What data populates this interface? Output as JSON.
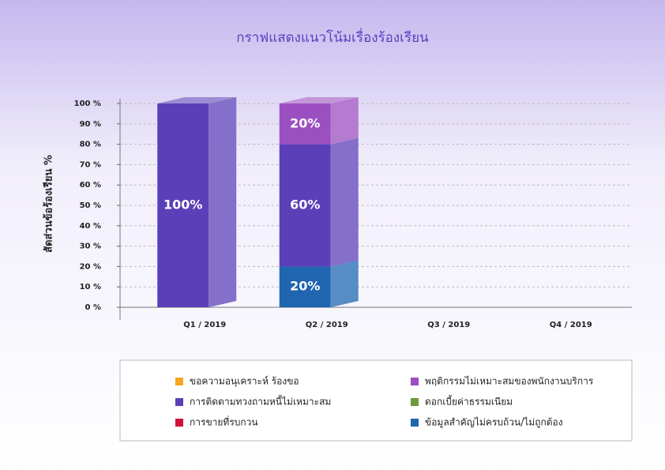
{
  "chart_data": {
    "type": "bar3d_stacked",
    "title": "กราฟแสดงแนวโน้มเรื่องร้องเรียน",
    "y_label": "สัดส่วนข้อร้องเรียน %",
    "categories": [
      "Q1 / 2019",
      "Q2 / 2019",
      "Q3 / 2019",
      "Q4 / 2019"
    ],
    "series": [
      {
        "name": "ข้อมูลสำคัญไม่ครบถ้วน/ไม่ถูกต้อง",
        "color": "#1f65b0",
        "values": [
          0,
          20,
          0,
          0
        ],
        "value_labels": [
          null,
          "20%",
          null,
          null
        ]
      },
      {
        "name": "การติดตามทวงถามหนี้ไม่เหมาะสม",
        "color": "#5b3fb8",
        "values": [
          100,
          60,
          0,
          0
        ],
        "value_labels": [
          "100%",
          "60%",
          null,
          null
        ]
      },
      {
        "name": "พฤติกรรมไม่เหมาะสมของพนักงานบริการ",
        "color": "#9b4fc0",
        "values": [
          0,
          20,
          0,
          0
        ],
        "value_labels": [
          null,
          "20%",
          null,
          null
        ]
      },
      {
        "name": "ขอความอนุเคราะห์ ร้องขอ",
        "color": "#f5a623",
        "values": [
          0,
          0,
          0,
          0
        ]
      },
      {
        "name": "ดอกเบี้ยค่าธรรมเนียม",
        "color": "#6a9a3a",
        "values": [
          0,
          0,
          0,
          0
        ]
      },
      {
        "name": "การขายที่รบกวน",
        "color": "#d0103a",
        "values": [
          0,
          0,
          0,
          0
        ]
      }
    ],
    "ylim": [
      0,
      100
    ],
    "yticks": [
      {
        "value": 0,
        "label": "0 %"
      },
      {
        "value": 10,
        "label": "10 %"
      },
      {
        "value": 20,
        "label": "20 %"
      },
      {
        "value": 30,
        "label": "30 %"
      },
      {
        "value": 40,
        "label": "40 %"
      },
      {
        "value": 50,
        "label": "50 %"
      },
      {
        "value": 60,
        "label": "60 %"
      },
      {
        "value": 70,
        "label": "70 %"
      },
      {
        "value": 80,
        "label": "80 %"
      },
      {
        "value": 90,
        "label": "90 %"
      },
      {
        "value": 100,
        "label": "100 %"
      }
    ],
    "grid": true
  }
}
